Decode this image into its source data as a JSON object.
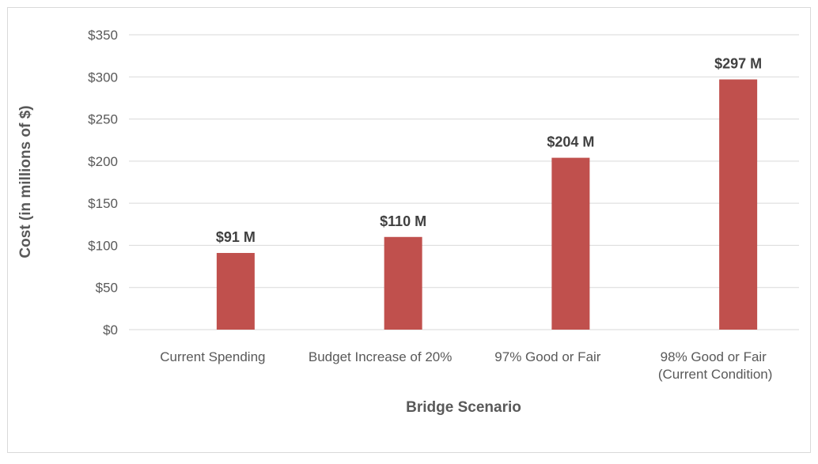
{
  "chart_data": {
    "type": "bar",
    "categories": [
      "Current Spending",
      "Budget Increase of 20%",
      "97% Good or Fair",
      "98% Good or Fair (Current Condition)"
    ],
    "values": [
      91,
      110,
      204,
      297
    ],
    "value_labels": [
      "$91 M",
      "$110 M",
      "$204 M",
      "$297 M"
    ],
    "color": "#c0504d",
    "x_label": "Bridge Scenario",
    "y_label": "Cost (in millions of $)",
    "ylim": [
      0,
      350
    ],
    "yticks": [
      {
        "value": 0,
        "label": "$0"
      },
      {
        "value": 50,
        "label": "$50"
      },
      {
        "value": 100,
        "label": "$100"
      },
      {
        "value": 150,
        "label": "$150"
      },
      {
        "value": 200,
        "label": "$200"
      },
      {
        "value": 250,
        "label": "$250"
      },
      {
        "value": 300,
        "label": "$300"
      },
      {
        "value": 350,
        "label": "$350"
      }
    ],
    "grid": true
  }
}
